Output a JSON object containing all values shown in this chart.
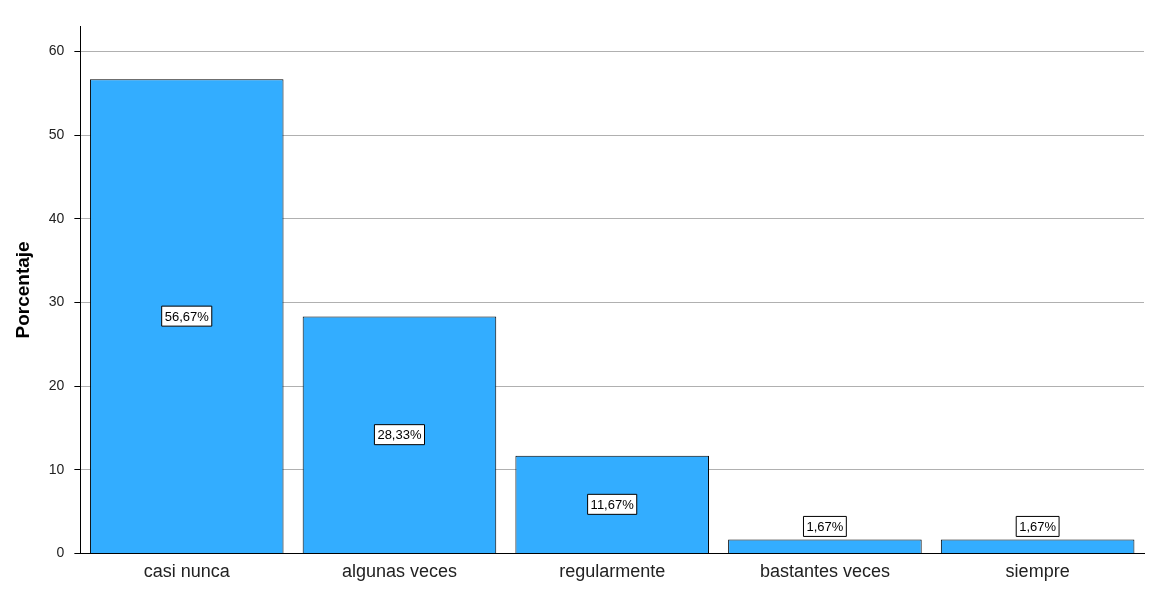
{
  "chart_data": {
    "type": "bar",
    "ylabel": "Porcentaje",
    "categories": [
      "casi nunca",
      "algunas veces",
      "regularmente",
      "bastantes veces",
      "siempre"
    ],
    "values": [
      56.67,
      28.33,
      11.67,
      1.67,
      1.67
    ],
    "value_labels": [
      "56,67%",
      "28,33%",
      "11,67%",
      "1,67%",
      "1,67%"
    ],
    "color": "#33adff",
    "ylim": [
      0,
      63
    ],
    "yticks": [
      0,
      10,
      20,
      30,
      40,
      50,
      60
    ],
    "grid": "y",
    "legend": false
  }
}
